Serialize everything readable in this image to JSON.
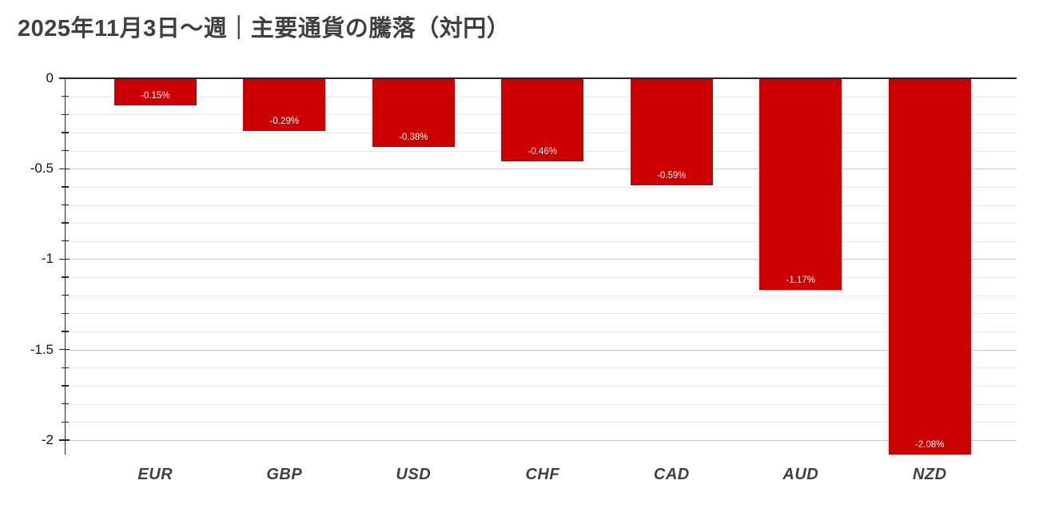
{
  "page": {
    "background": "#FFFFFF"
  },
  "chart_data": {
    "type": "bar",
    "title": "2025年11月3日～週｜主要通貨の騰落（対円）",
    "categories": [
      "EUR",
      "GBP",
      "USD",
      "CHF",
      "CAD",
      "AUD",
      "NZD"
    ],
    "values": [
      -0.15,
      -0.29,
      -0.38,
      -0.46,
      -0.59,
      -1.17,
      -2.08
    ],
    "data_labels": [
      "-0.15%",
      "-0.29%",
      "-0.38%",
      "-0.46%",
      "-0.59%",
      "-1.17%",
      "-2.08%"
    ],
    "xlabel": "",
    "ylabel": "",
    "ylim": [
      -2.08,
      0
    ],
    "yticks": [
      0,
      -0.5,
      -1,
      -1.5,
      -2
    ],
    "ytick_labels": [
      "0",
      "-0.5",
      "-1",
      "-1.5",
      "-2"
    ],
    "minor_tick_step": 0.1,
    "grid": "horizontal minor lines every 0.1, major lines every 0.5",
    "legend": "none",
    "data_label_position": "inside-end",
    "colors": {
      "bar": "#CC0000",
      "data_label": "#FFFFFF",
      "axis_line": "#262626",
      "zero_line": "#262626",
      "major_grid": "#C9C9C9",
      "minor_grid": "#E8E8E8",
      "title": "#3F3F3F",
      "tick_label": "#141414",
      "category_label": "#404040"
    }
  }
}
